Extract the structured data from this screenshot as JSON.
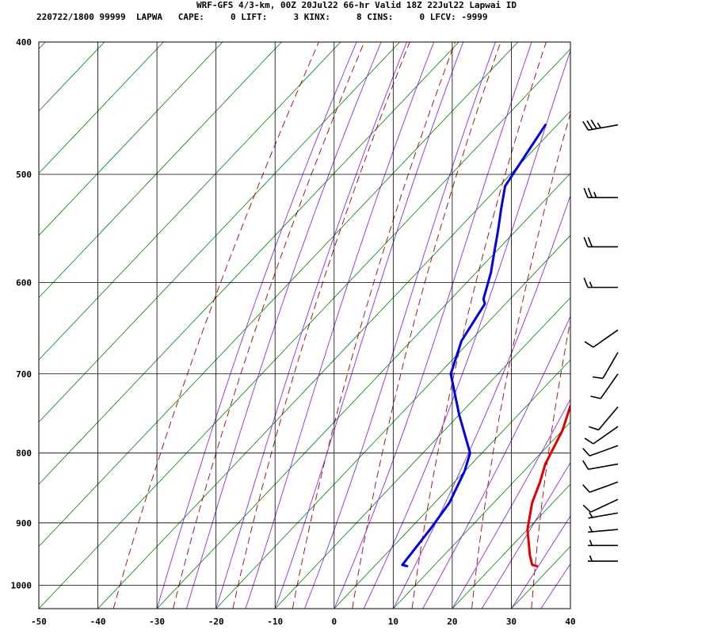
{
  "header": {
    "title": "WRF-GFS 4/3-km, 00Z 20Jul22 66-hr Valid 18Z 22Jul22 Lapwai ID",
    "station_line": "220722/1800 99999  LAPWA   CAPE:     0 LIFT:     3 KINX:     8 CINS:     0 LFCV: -9999"
  },
  "chart_data": {
    "type": "line",
    "title": "WRF-GFS 4/3-km, 00Z 20Jul22 66-hr Valid 18Z 22Jul22 Lapwai ID",
    "xlim": [
      -50,
      40
    ],
    "ylim": [
      1040,
      400
    ],
    "y_scale": "log",
    "x_ticks": [
      -50,
      -40,
      -30,
      -20,
      -10,
      0,
      10,
      20,
      30,
      40
    ],
    "y_ticks": [
      400,
      500,
      600,
      700,
      800,
      900,
      1000
    ],
    "grid": true,
    "colors": {
      "temperature": "#e00000",
      "dewpoint": "#0000e0",
      "isotherm": "#008000",
      "dry_adiabat": "#a00000",
      "moist_adiabat": "#8a2be2"
    },
    "series": [
      {
        "color": "#e00000",
        "points": [
          [
            27.5,
            968
          ],
          [
            26.5,
            966
          ],
          [
            24.5,
            950
          ],
          [
            20,
            910
          ],
          [
            16.5,
            870
          ],
          [
            14.5,
            840
          ],
          [
            12.5,
            815
          ],
          [
            10,
            770
          ],
          [
            7.5,
            740
          ],
          [
            5,
            700
          ],
          [
            2.5,
            665
          ],
          [
            1,
            645
          ],
          [
            -0.5,
            630
          ],
          [
            -3.5,
            600
          ],
          [
            -6,
            575
          ],
          [
            -8.5,
            550
          ],
          [
            -10.5,
            530
          ],
          [
            -12.5,
            510
          ],
          [
            -14,
            497
          ],
          [
            -17.5,
            460
          ]
        ]
      },
      {
        "color": "#0000e0",
        "points": [
          [
            5.5,
            968
          ],
          [
            4.5,
            966
          ],
          [
            3.5,
            910
          ],
          [
            2.5,
            870
          ],
          [
            0,
            825
          ],
          [
            -2,
            800
          ],
          [
            -10,
            750
          ],
          [
            -18,
            700
          ],
          [
            -21.5,
            662
          ],
          [
            -23.5,
            622
          ],
          [
            -24.5,
            617
          ],
          [
            -27.5,
            590
          ],
          [
            -30.5,
            568
          ],
          [
            -33,
            550
          ],
          [
            -36,
            530
          ],
          [
            -39,
            510
          ],
          [
            -42,
            460
          ]
        ]
      }
    ],
    "wind_barbs": [
      {
        "p": 960,
        "dir": 270,
        "spd": 5
      },
      {
        "p": 935,
        "dir": 270,
        "spd": 5
      },
      {
        "p": 910,
        "dir": 265,
        "spd": 5
      },
      {
        "p": 885,
        "dir": 260,
        "spd": 5
      },
      {
        "p": 865,
        "dir": 245,
        "spd": 10
      },
      {
        "p": 840,
        "dir": 250,
        "spd": 10
      },
      {
        "p": 815,
        "dir": 260,
        "spd": 10
      },
      {
        "p": 790,
        "dir": 250,
        "spd": 10
      },
      {
        "p": 765,
        "dir": 235,
        "spd": 10
      },
      {
        "p": 740,
        "dir": 220,
        "spd": 10
      },
      {
        "p": 700,
        "dir": 215,
        "spd": 10
      },
      {
        "p": 675,
        "dir": 210,
        "spd": 10
      },
      {
        "p": 650,
        "dir": 235,
        "spd": 10
      },
      {
        "p": 605,
        "dir": 270,
        "spd": 15
      },
      {
        "p": 565,
        "dir": 270,
        "spd": 20
      },
      {
        "p": 520,
        "dir": 270,
        "spd": 25
      },
      {
        "p": 460,
        "dir": 260,
        "spd": 35
      }
    ]
  }
}
